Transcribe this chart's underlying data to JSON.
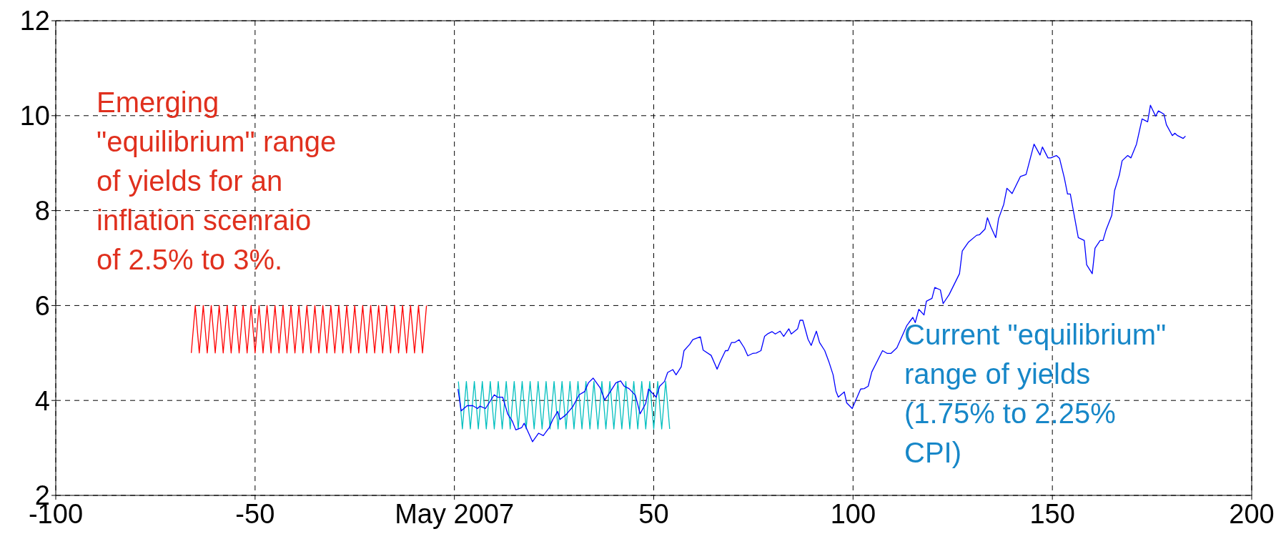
{
  "chart_data": {
    "type": "line",
    "xlim": [
      -100,
      200
    ],
    "ylim": [
      2,
      12
    ],
    "xticks": [
      -100,
      -50,
      {
        "value": 0,
        "label": "May 2007"
      },
      50,
      100,
      150,
      200
    ],
    "yticks": [
      2,
      4,
      6,
      8,
      10,
      12
    ],
    "grid": true,
    "line_style": "solid",
    "annotations": [
      "Emerging\n\"equilibrium\" range\nof yields for an\ninflation scenraio\nof 2.5% to 3%.",
      "Current \"equilibrium\"\nrange of yields\n(1.75% to 2.25%\nCPI)"
    ],
    "series": [
      {
        "color": "#ff0000",
        "x": [
          -66,
          -65,
          -64,
          -63,
          -62,
          -61,
          -60,
          -59,
          -58,
          -57,
          -56,
          -55,
          -54,
          -53,
          -52,
          -51,
          -50,
          -49,
          -48,
          -47,
          -46,
          -45,
          -44,
          -43,
          -42,
          -41,
          -40,
          -39,
          -38,
          -37,
          -36,
          -35,
          -34,
          -33,
          -32,
          -31,
          -30,
          -29,
          -28,
          -27,
          -26,
          -25,
          -24,
          -23,
          -22,
          -21,
          -20,
          -19,
          -18,
          -17,
          -16,
          -15,
          -14,
          -13,
          -12,
          -11,
          -10,
          -9,
          -8,
          -7
        ],
        "values": [
          5,
          6,
          5,
          6,
          5,
          6,
          5,
          6,
          5,
          6,
          5,
          6,
          5,
          6,
          5,
          6,
          5,
          6,
          5,
          6,
          5,
          6,
          5,
          6,
          5,
          6,
          5,
          6,
          5,
          6,
          5,
          6,
          5,
          6,
          5,
          6,
          5,
          6,
          5,
          6,
          5,
          6,
          5,
          6,
          5,
          6,
          5,
          6,
          5,
          6,
          5,
          6,
          5,
          6,
          5,
          6,
          5,
          6,
          5,
          6
        ]
      },
      {
        "color": "#00bfbf",
        "x": [
          1,
          2,
          3,
          4,
          5,
          6,
          7,
          8,
          9,
          10,
          11,
          12,
          13,
          14,
          15,
          16,
          17,
          18,
          19,
          20,
          21,
          22,
          23,
          24,
          25,
          26,
          27,
          28,
          29,
          30,
          31,
          32,
          33,
          34,
          35,
          36,
          37,
          38,
          39,
          40,
          41,
          42,
          43,
          44,
          45,
          46,
          47,
          48,
          49,
          50,
          51,
          52,
          53,
          54
        ],
        "values": [
          4.4,
          3.4,
          4.4,
          3.4,
          4.4,
          3.4,
          4.4,
          3.4,
          4.4,
          3.4,
          4.4,
          3.4,
          4.4,
          3.4,
          4.4,
          3.4,
          4.4,
          3.4,
          4.4,
          3.4,
          4.4,
          3.4,
          4.4,
          3.4,
          4.4,
          3.4,
          4.4,
          3.4,
          4.4,
          3.4,
          4.4,
          3.4,
          4.4,
          3.4,
          4.4,
          3.4,
          4.4,
          3.4,
          4.4,
          3.4,
          4.4,
          3.4,
          4.4,
          3.4,
          4.4,
          3.4,
          4.4,
          3.4,
          4.4,
          3.4,
          4.4,
          3.4,
          4.4,
          3.4
        ]
      },
      {
        "color": "#0000ff",
        "x": [
          0.9,
          1.7,
          3.2,
          4.6,
          5.8,
          6.4,
          7.8,
          10,
          10.8,
          12.1,
          13.4,
          14.5,
          15.4,
          16.9,
          17.5,
          19.6,
          21.1,
          22.3,
          23.8,
          24.7,
          25.9,
          26.5,
          28,
          29.7,
          31.3,
          32.7,
          33.6,
          34.8,
          36.6,
          37.7,
          39,
          40.5,
          41.7,
          42.6,
          43.8,
          45.4,
          46.6,
          48,
          48.7,
          50.6,
          51.5,
          52.7,
          53.5,
          54.8,
          55.6,
          56.9,
          57.6,
          59,
          59.8,
          61.7,
          62.4,
          64.4,
          65.9,
          66.8,
          68,
          68.6,
          69.5,
          70.3,
          71.4,
          72.7,
          73.6,
          74.8,
          75.7,
          76.9,
          77.8,
          78.7,
          79.7,
          80.5,
          81.7,
          82.6,
          83.9,
          84.5,
          86.1,
          86.7,
          87.4,
          88.7,
          89.5,
          90.8,
          91.6,
          92.9,
          94,
          95,
          95.7,
          96.3,
          97.8,
          98.4,
          99.8,
          101.9,
          102.8,
          103.8,
          104.7,
          107.4,
          108.6,
          109.5,
          111,
          113.5,
          115,
          115.6,
          116.5,
          117.8,
          118.4,
          119.8,
          120.5,
          121.9,
          122.6,
          124.1,
          126.7,
          127.4,
          128.9,
          131,
          131.7,
          133.1,
          133.7,
          134.6,
          135.8,
          136.5,
          137.8,
          138.6,
          139.9,
          142,
          143.4,
          145.4,
          146.9,
          147.5,
          148.9,
          149.6,
          151,
          151.8,
          153,
          153.8,
          154.5,
          156.5,
          158,
          158.6,
          160,
          160.7,
          162,
          162.7,
          163.5,
          164.9,
          165.6,
          166.8,
          167.5,
          168.9,
          169.7,
          171.1,
          172.5,
          173.9,
          174.6,
          175.9,
          176.6,
          178,
          178.6,
          180.1,
          180.7,
          181.4,
          182.8,
          183.4
        ],
        "values": [
          4.24,
          3.78,
          3.89,
          3.89,
          3.83,
          3.88,
          3.83,
          4.12,
          4.07,
          4.07,
          3.71,
          3.57,
          3.38,
          3.43,
          3.52,
          3.13,
          3.31,
          3.26,
          3.43,
          3.6,
          3.77,
          3.6,
          3.7,
          3.87,
          4.12,
          4.19,
          4.37,
          4.47,
          4.26,
          4.01,
          4.17,
          4.37,
          4.41,
          4.3,
          4.25,
          4.11,
          3.72,
          3.94,
          4.24,
          4.07,
          4.3,
          4.4,
          4.59,
          4.65,
          4.54,
          4.71,
          5.05,
          5.18,
          5.28,
          5.34,
          5.06,
          4.95,
          4.66,
          4.84,
          5.05,
          5.05,
          5.22,
          5.22,
          5.28,
          5.11,
          4.94,
          4.99,
          5,
          5.05,
          5.35,
          5.41,
          5.45,
          5.4,
          5.46,
          5.35,
          5.51,
          5.4,
          5.51,
          5.69,
          5.69,
          5.29,
          5.16,
          5.46,
          5.22,
          5.05,
          4.8,
          4.54,
          4.2,
          4.07,
          4.18,
          3.95,
          3.83,
          4.24,
          4.25,
          4.3,
          4.6,
          5.05,
          4.99,
          4.99,
          5.11,
          5.58,
          5.75,
          5.64,
          5.92,
          5.8,
          6.09,
          6.15,
          6.38,
          6.33,
          6.04,
          6.23,
          6.67,
          7.15,
          7.33,
          7.48,
          7.49,
          7.61,
          7.85,
          7.65,
          7.43,
          7.83,
          8.13,
          8.47,
          8.36,
          8.72,
          8.76,
          9.4,
          9.17,
          9.34,
          9.11,
          9.11,
          9.16,
          9.1,
          8.69,
          8.35,
          8.35,
          7.43,
          7.37,
          6.86,
          6.67,
          7.21,
          7.37,
          7.37,
          7.6,
          7.9,
          8.42,
          8.75,
          9.05,
          9.16,
          9.11,
          9.4,
          9.93,
          9.87,
          10.22,
          9.99,
          10.1,
          10.03,
          9.81,
          9.58,
          9.63,
          9.58,
          9.52,
          9.57
        ]
      }
    ]
  }
}
